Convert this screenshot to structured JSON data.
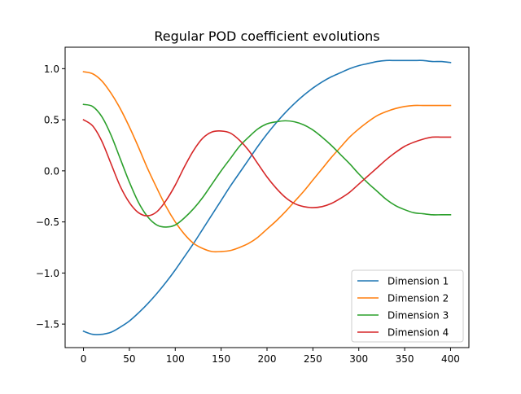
{
  "chart_data": {
    "type": "line",
    "title": "Regular POD coefficient evolutions",
    "xlabel": "",
    "ylabel": "",
    "xlim": [
      -20,
      420
    ],
    "ylim": [
      -1.73,
      1.21
    ],
    "xticks": [
      0,
      50,
      100,
      150,
      200,
      250,
      300,
      350,
      400
    ],
    "yticks": [
      -1.5,
      -1.0,
      -0.5,
      0.0,
      0.5,
      1.0
    ],
    "ytick_labels": [
      "−1.5",
      "−1.0",
      "−0.5",
      "0.0",
      "0.5",
      "1.0"
    ],
    "grid": false,
    "legend_position": "lower right",
    "x": [
      0,
      10,
      20,
      30,
      40,
      50,
      60,
      70,
      80,
      90,
      100,
      110,
      120,
      130,
      140,
      150,
      160,
      170,
      180,
      190,
      200,
      210,
      220,
      230,
      240,
      250,
      260,
      270,
      280,
      290,
      300,
      310,
      320,
      330,
      340,
      350,
      360,
      370,
      380,
      390,
      400
    ],
    "series": [
      {
        "name": "Dimension 1",
        "color": "#1f77b4",
        "values": [
          -1.57,
          -1.6,
          -1.6,
          -1.58,
          -1.53,
          -1.47,
          -1.39,
          -1.3,
          -1.2,
          -1.09,
          -0.97,
          -0.84,
          -0.71,
          -0.57,
          -0.43,
          -0.29,
          -0.15,
          -0.02,
          0.11,
          0.24,
          0.36,
          0.47,
          0.57,
          0.66,
          0.74,
          0.81,
          0.87,
          0.92,
          0.96,
          1.0,
          1.03,
          1.05,
          1.07,
          1.08,
          1.08,
          1.08,
          1.08,
          1.08,
          1.07,
          1.07,
          1.06
        ]
      },
      {
        "name": "Dimension 2",
        "color": "#ff7f0e",
        "values": [
          0.97,
          0.95,
          0.88,
          0.76,
          0.61,
          0.43,
          0.23,
          0.02,
          -0.17,
          -0.35,
          -0.5,
          -0.62,
          -0.71,
          -0.76,
          -0.79,
          -0.79,
          -0.78,
          -0.75,
          -0.71,
          -0.65,
          -0.57,
          -0.49,
          -0.4,
          -0.3,
          -0.2,
          -0.09,
          0.02,
          0.13,
          0.23,
          0.33,
          0.41,
          0.48,
          0.54,
          0.58,
          0.61,
          0.63,
          0.64,
          0.64,
          0.64,
          0.64,
          0.64
        ]
      },
      {
        "name": "Dimension 3",
        "color": "#2ca02c",
        "values": [
          0.65,
          0.63,
          0.53,
          0.35,
          0.12,
          -0.11,
          -0.31,
          -0.45,
          -0.53,
          -0.55,
          -0.53,
          -0.46,
          -0.37,
          -0.26,
          -0.13,
          0.0,
          0.12,
          0.24,
          0.33,
          0.41,
          0.46,
          0.48,
          0.49,
          0.48,
          0.45,
          0.4,
          0.33,
          0.25,
          0.16,
          0.07,
          -0.03,
          -0.12,
          -0.2,
          -0.28,
          -0.34,
          -0.38,
          -0.41,
          -0.42,
          -0.43,
          -0.43,
          -0.43
        ]
      },
      {
        "name": "Dimension 4",
        "color": "#d62728",
        "values": [
          0.5,
          0.44,
          0.29,
          0.07,
          -0.15,
          -0.31,
          -0.41,
          -0.44,
          -0.4,
          -0.29,
          -0.14,
          0.04,
          0.2,
          0.32,
          0.38,
          0.39,
          0.37,
          0.3,
          0.2,
          0.07,
          -0.06,
          -0.17,
          -0.26,
          -0.32,
          -0.35,
          -0.36,
          -0.35,
          -0.32,
          -0.27,
          -0.21,
          -0.13,
          -0.05,
          0.03,
          0.11,
          0.18,
          0.24,
          0.28,
          0.31,
          0.33,
          0.33,
          0.33
        ]
      }
    ]
  }
}
